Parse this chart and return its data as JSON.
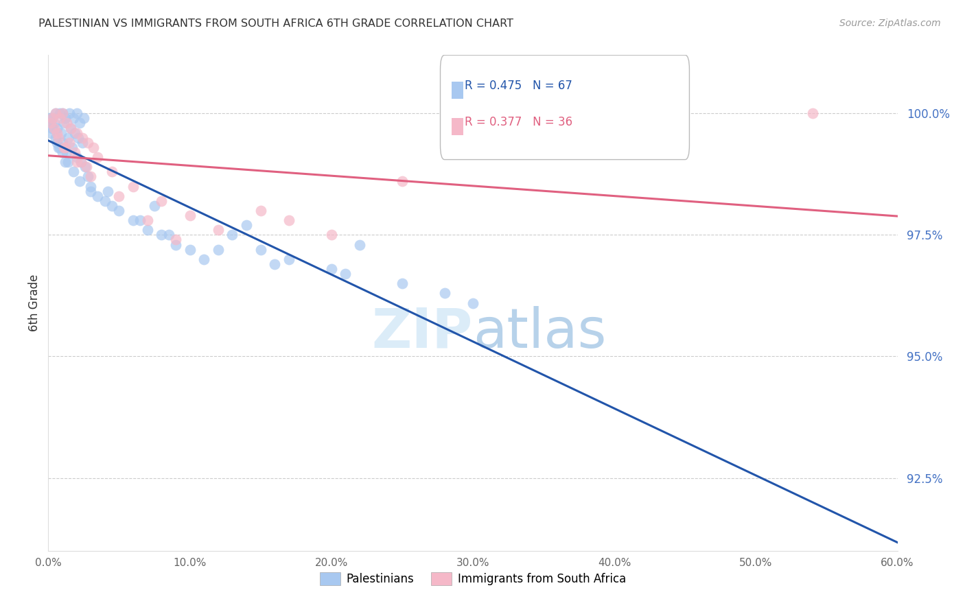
{
  "title": "PALESTINIAN VS IMMIGRANTS FROM SOUTH AFRICA 6TH GRADE CORRELATION CHART",
  "source": "Source: ZipAtlas.com",
  "xlabel_vals": [
    0.0,
    10.0,
    20.0,
    30.0,
    40.0,
    50.0,
    60.0
  ],
  "ylabel": "6th Grade",
  "ylabel_vals": [
    92.5,
    95.0,
    97.5,
    100.0
  ],
  "xmin": 0.0,
  "xmax": 60.0,
  "ymin": 91.0,
  "ymax": 101.2,
  "blue_R": 0.475,
  "blue_N": 67,
  "pink_R": 0.377,
  "pink_N": 36,
  "blue_color": "#A8C8F0",
  "pink_color": "#F5B8C8",
  "blue_line_color": "#2255AA",
  "pink_line_color": "#E06080",
  "legend_label_blue": "Palestinians",
  "legend_label_pink": "Immigrants from South Africa",
  "blue_x": [
    0.3,
    0.5,
    0.8,
    1.0,
    1.2,
    1.5,
    1.8,
    2.0,
    2.2,
    2.5,
    0.2,
    0.4,
    0.6,
    0.9,
    1.1,
    1.4,
    1.6,
    1.9,
    2.1,
    2.4,
    0.1,
    0.3,
    0.5,
    0.7,
    1.0,
    1.3,
    1.7,
    2.0,
    2.3,
    2.6,
    0.2,
    0.6,
    1.0,
    1.4,
    1.8,
    2.2,
    3.0,
    3.5,
    4.0,
    5.0,
    6.0,
    7.0,
    8.0,
    9.0,
    10.0,
    11.0,
    13.0,
    15.0,
    17.0,
    20.0,
    3.0,
    4.5,
    6.5,
    8.5,
    12.0,
    16.0,
    21.0,
    25.0,
    28.0,
    30.0,
    0.8,
    1.2,
    2.8,
    4.2,
    7.5,
    14.0,
    22.0
  ],
  "blue_y": [
    99.9,
    100.0,
    100.0,
    100.0,
    99.9,
    100.0,
    99.9,
    100.0,
    99.8,
    99.9,
    99.8,
    99.8,
    99.7,
    99.6,
    99.8,
    99.5,
    99.7,
    99.6,
    99.5,
    99.4,
    99.9,
    99.7,
    99.5,
    99.3,
    99.4,
    99.2,
    99.3,
    99.1,
    99.0,
    98.9,
    99.6,
    99.4,
    99.2,
    99.0,
    98.8,
    98.6,
    98.5,
    98.3,
    98.2,
    98.0,
    97.8,
    97.6,
    97.5,
    97.3,
    97.2,
    97.0,
    97.5,
    97.2,
    97.0,
    96.8,
    98.4,
    98.1,
    97.8,
    97.5,
    97.2,
    96.9,
    96.7,
    96.5,
    96.3,
    96.1,
    99.3,
    99.0,
    98.7,
    98.4,
    98.1,
    97.7,
    97.3
  ],
  "pink_x": [
    0.3,
    0.5,
    0.8,
    1.0,
    1.3,
    1.6,
    2.0,
    2.4,
    2.8,
    3.2,
    0.2,
    0.4,
    0.7,
    1.1,
    1.5,
    1.9,
    2.3,
    2.7,
    3.5,
    4.5,
    6.0,
    8.0,
    10.0,
    12.0,
    15.0,
    17.0,
    20.0,
    0.6,
    1.2,
    2.0,
    3.0,
    5.0,
    7.0,
    9.0,
    54.0,
    25.0
  ],
  "pink_y": [
    99.9,
    100.0,
    99.9,
    100.0,
    99.8,
    99.7,
    99.6,
    99.5,
    99.4,
    99.3,
    99.8,
    99.7,
    99.5,
    99.3,
    99.4,
    99.2,
    99.0,
    98.9,
    99.1,
    98.8,
    98.5,
    98.2,
    97.9,
    97.6,
    98.0,
    97.8,
    97.5,
    99.6,
    99.3,
    99.0,
    98.7,
    98.3,
    97.8,
    97.4,
    100.0,
    98.6
  ]
}
